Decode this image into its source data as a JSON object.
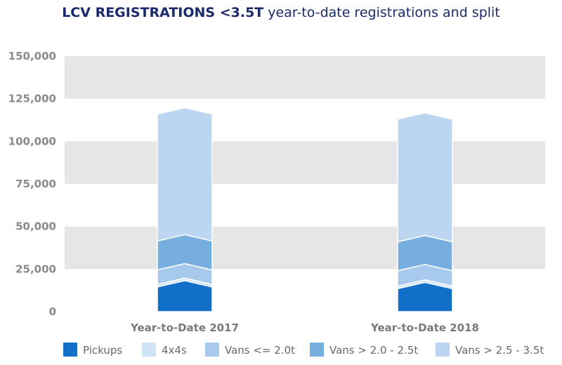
{
  "title": {
    "bold": "LCV REGISTRATIONS <3.5T",
    "light": "year-to-date registrations and split"
  },
  "chart_data": {
    "type": "bar",
    "stacked": true,
    "categories": [
      "Year-to-Date 2017",
      "Year-to-Date 2018"
    ],
    "series": [
      {
        "name": "Pickups",
        "color": "#1370c9",
        "values": [
          14500,
          13500
        ]
      },
      {
        "name": "4x4s",
        "color": "#cfe3f5",
        "values": [
          1500,
          1500
        ]
      },
      {
        "name": "Vans <= 2.0t",
        "color": "#a7c9eb",
        "values": [
          8500,
          9000
        ]
      },
      {
        "name": "Vans > 2.0 - 2.5t",
        "color": "#77aee0",
        "values": [
          17000,
          17000
        ]
      },
      {
        "name": "Vans > 2.5 - 3.5t",
        "color": "#bcd5f0",
        "values": [
          74500,
          72000
        ]
      }
    ],
    "yticks": [
      "0",
      "25,000",
      "50,000",
      "75,000",
      "100,000",
      "125,000",
      "150,000"
    ],
    "ylim": [
      0,
      150000
    ],
    "band_color": "#e6e6e6",
    "grid": true,
    "legend_position": "bottom"
  }
}
